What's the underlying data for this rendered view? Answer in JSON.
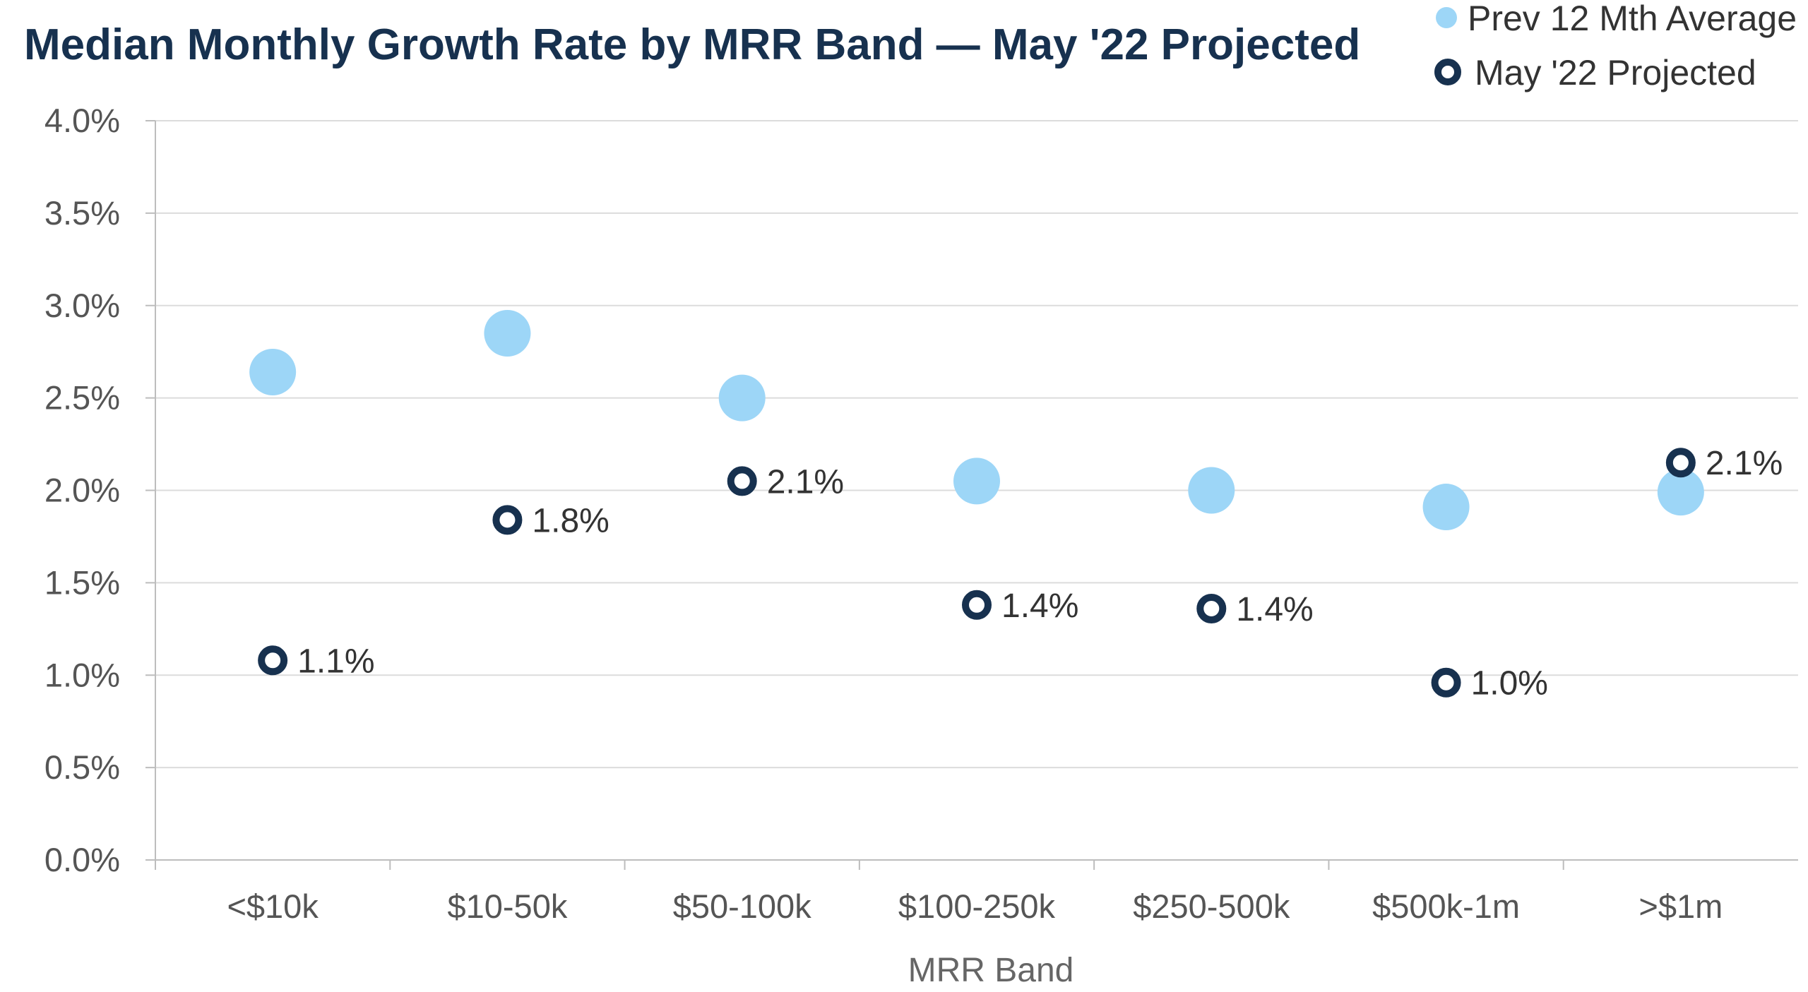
{
  "chart_data": {
    "type": "scatter",
    "title": "Median Monthly Growth Rate by MRR Band — May '22 Projected",
    "xlabel": "MRR Band",
    "ylabel": "",
    "categories": [
      "<$10k",
      "$10-50k",
      "$50-100k",
      "$100-250k",
      "$250-500k",
      "$500k-1m",
      ">$1m"
    ],
    "ylim": [
      0,
      4.0
    ],
    "yticks": [
      0,
      0.5,
      1.0,
      1.5,
      2.0,
      2.5,
      3.0,
      3.5,
      4.0
    ],
    "ytick_labels": [
      "0.0%",
      "0.5%",
      "1.0%",
      "1.5%",
      "2.0%",
      "2.5%",
      "3.0%",
      "3.5%",
      "4.0%"
    ],
    "grid": true,
    "legend_position": "top-right",
    "series": [
      {
        "name": "Prev 12 Mth Average",
        "values": [
          2.64,
          2.85,
          2.5,
          2.05,
          2.0,
          1.91,
          1.99
        ],
        "color": "#9dd6f7",
        "marker": "filled-circle"
      },
      {
        "name": "May '22 Projected",
        "values": [
          1.08,
          1.84,
          2.05,
          1.38,
          1.36,
          0.96,
          2.15
        ],
        "labels": [
          "1.1%",
          "1.8%",
          "2.1%",
          "1.4%",
          "1.4%",
          "1.0%",
          "2.1%"
        ],
        "color": "#17314f",
        "marker": "hollow-circle"
      }
    ]
  }
}
